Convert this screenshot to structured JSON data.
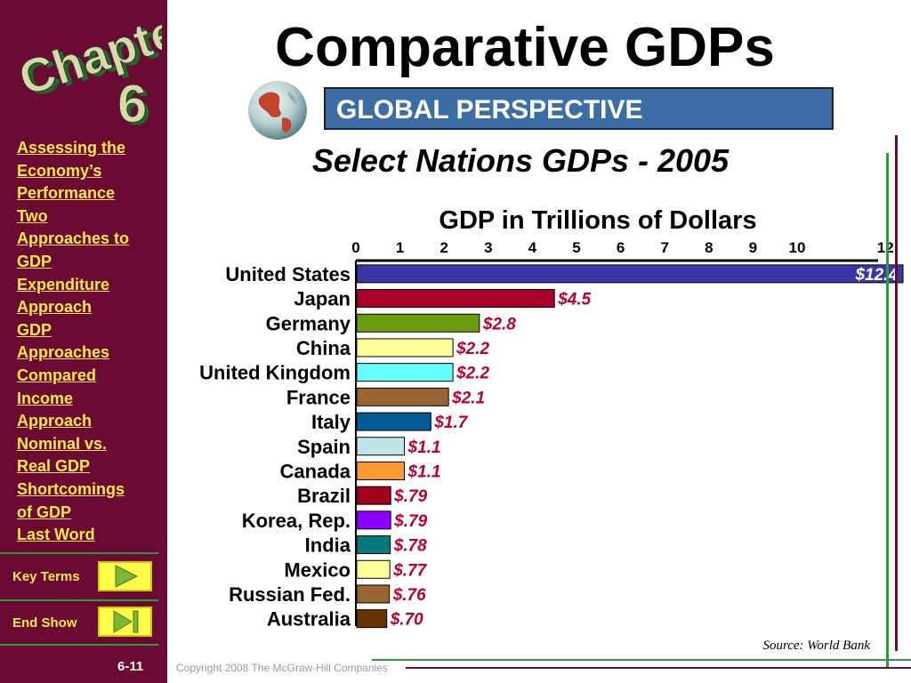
{
  "sidebar": {
    "logo_word": "Chapter",
    "logo_number": "6",
    "nav": [
      "Assessing the",
      "Economy’s",
      "Performance",
      "Two",
      "Approaches to",
      "GDP",
      "Expenditure",
      "Approach",
      "GDP",
      "Approaches",
      "Compared",
      "Income",
      "Approach",
      "Nominal vs.",
      "Real GDP",
      "Shortcomings",
      "of GDP",
      "Last Word"
    ],
    "key_terms_label": "Key Terms",
    "end_show_label": "End Show",
    "page_number": "6-11",
    "colors": {
      "background": "#6b0a33",
      "link": "#ffe94a",
      "rule": "#2e9b3c",
      "button": "#ffff4a"
    }
  },
  "header": {
    "title": "Comparative GDPs",
    "banner": "GLOBAL PERSPECTIVE",
    "subtitle": "Select Nations GDPs - 2005",
    "banner_color": "#3c6da4"
  },
  "chart_data": {
    "type": "bar",
    "orientation": "horizontal",
    "title": "GDP in Trillions of Dollars",
    "xlim": [
      0,
      12.4
    ],
    "ticks": [
      0,
      1,
      2,
      3,
      4,
      5,
      6,
      7,
      8,
      9,
      10,
      12
    ],
    "categories": [
      "United States",
      "Japan",
      "Germany",
      "China",
      "United Kingdom",
      "France",
      "Italy",
      "Spain",
      "Canada",
      "Brazil",
      "Korea, Rep.",
      "India",
      "Mexico",
      "Russian Fed.",
      "Australia"
    ],
    "values": [
      12.4,
      4.5,
      2.8,
      2.2,
      2.2,
      2.1,
      1.7,
      1.1,
      1.1,
      0.79,
      0.79,
      0.78,
      0.77,
      0.76,
      0.7
    ],
    "labels": [
      "$12.4",
      "$4.5",
      "$2.8",
      "$2.2",
      "$2.2",
      "$2.1",
      "$1.7",
      "$1.1",
      "$1.1",
      "$.79",
      "$.79",
      "$.78",
      "$.77",
      "$.76",
      "$.70"
    ],
    "colors": [
      "#3b36a6",
      "#a8002a",
      "#6a9c10",
      "#ffff99",
      "#66ffff",
      "#996633",
      "#005a94",
      "#bfe3e6",
      "#ff9933",
      "#a0001c",
      "#8a00ff",
      "#007a7a",
      "#ffff99",
      "#996633",
      "#663300"
    ],
    "label_color": "#b8002e",
    "grid": false,
    "legend": "none"
  },
  "footer": {
    "source": "Source: World Bank",
    "copyright": "Copyright 2008 The McGraw-Hill Companies"
  }
}
